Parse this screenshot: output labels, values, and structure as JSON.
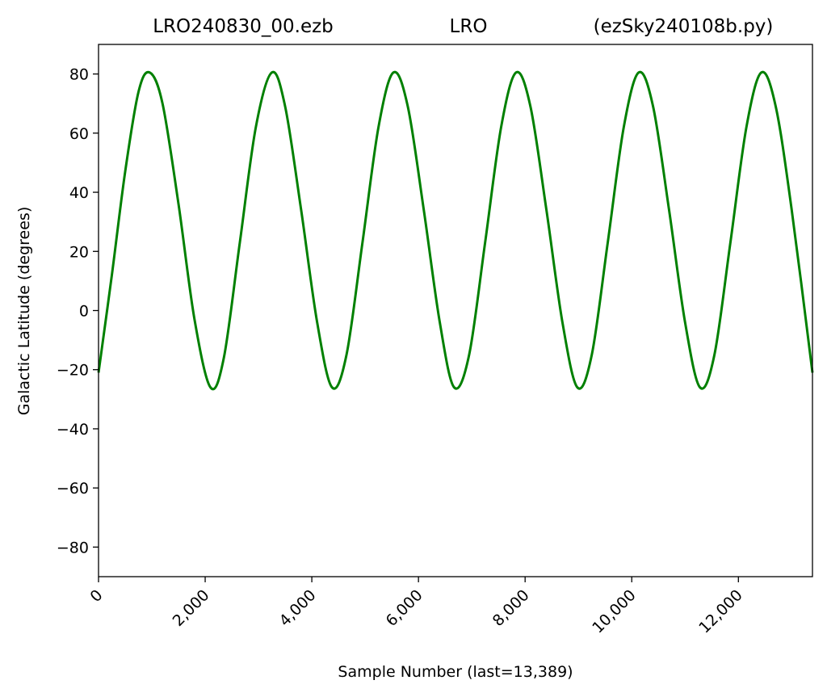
{
  "chart_data": {
    "type": "line",
    "title_left": "LRO240830_00.ezb",
    "title_center": "LRO",
    "title_right": "(ezSky240108b.py)",
    "xlabel": "Sample Number (last=13,389)",
    "ylabel": "Galactic Latitude (degrees)",
    "xlim": [
      0,
      13389
    ],
    "ylim": [
      -90,
      90
    ],
    "x_ticks": [
      0,
      2000,
      4000,
      6000,
      8000,
      10000,
      12000
    ],
    "x_tick_labels": [
      "0",
      "2,000",
      "4,000",
      "6,000",
      "8,000",
      "10,000",
      "12,000"
    ],
    "y_ticks": [
      80,
      60,
      40,
      20,
      0,
      -20,
      -40,
      -60,
      -80
    ],
    "y_tick_labels": [
      "80",
      "60",
      "40",
      "20",
      "0",
      "−20",
      "−40",
      "−60",
      "−80"
    ],
    "grid": false,
    "series_color": "#008000",
    "series": [
      {
        "x": [
          0,
          250,
          500,
          750,
          960,
          1200,
          1500,
          1800,
          2100,
          2350,
          2650,
          2950,
          3250,
          3500,
          3800,
          4100,
          4380,
          4650,
          4950,
          5250,
          5530,
          5800,
          6100,
          6400,
          6670,
          6950,
          7250,
          7550,
          7830,
          8100,
          8400,
          8700,
          8980,
          9250,
          9550,
          9850,
          10130,
          10400,
          10700,
          11000,
          11280,
          11550,
          11850,
          12150,
          12430,
          12700,
          13000,
          13389
        ],
        "y": [
          -21,
          12,
          47,
          74,
          80.5,
          70,
          36,
          -3,
          -26,
          -16,
          23,
          62,
          80.5,
          69,
          34,
          -4,
          -26,
          -15,
          23,
          62,
          80.5,
          69,
          34,
          -4,
          -26,
          -15,
          23,
          62,
          80.5,
          69,
          34,
          -4,
          -26,
          -15,
          23,
          62,
          80.5,
          69,
          34,
          -4,
          -26,
          -15,
          23,
          62,
          80.5,
          69,
          34,
          -21
        ]
      }
    ]
  }
}
